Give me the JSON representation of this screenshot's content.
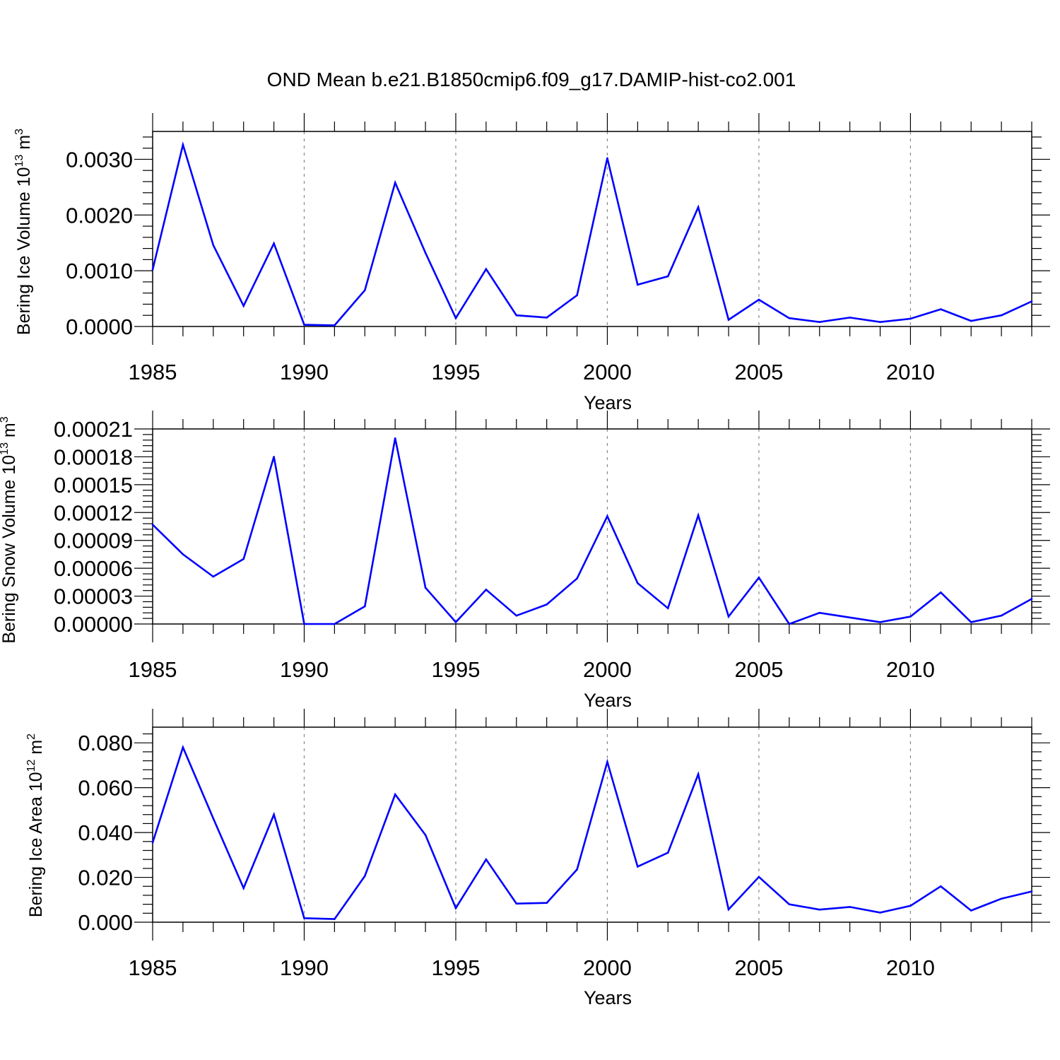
{
  "title": "OND Mean b.e21.B1850cmip6.f09_g17.DAMIP-hist-co2.001",
  "colors": {
    "series": "#0000ff",
    "axis": "#000000",
    "grid": "#888888"
  },
  "chart_data": [
    {
      "type": "line",
      "ylabel": {
        "base": "Bering Ice Volume 10",
        "exp": "13",
        "unit": " m",
        "unit_exp": "3"
      },
      "xlabel": "Years",
      "xlim": [
        1985,
        2014
      ],
      "ylim": [
        0,
        0.0035
      ],
      "xticks": [
        "1985",
        "1990",
        "1995",
        "2000",
        "2005",
        "2010"
      ],
      "yticks": [
        "0.0000",
        "0.0010",
        "0.0020",
        "0.0030"
      ],
      "ytick_values": [
        0,
        0.001,
        0.002,
        0.003
      ],
      "x": [
        1985,
        1986,
        1987,
        1988,
        1989,
        1990,
        1991,
        1992,
        1993,
        1994,
        1995,
        1996,
        1997,
        1998,
        1999,
        2000,
        2001,
        2002,
        2003,
        2004,
        2005,
        2006,
        2007,
        2008,
        2009,
        2010,
        2011,
        2012,
        2013,
        2014
      ],
      "values": [
        0.00102,
        0.00326,
        0.00146,
        0.00037,
        0.00149,
        3e-05,
        2e-05,
        0.00065,
        0.00258,
        0.00132,
        0.00015,
        0.00103,
        0.0002,
        0.00016,
        0.00056,
        0.00302,
        0.00075,
        0.0009,
        0.00214,
        0.00012,
        0.00048,
        0.00015,
        8e-05,
        0.00016,
        8e-05,
        0.00014,
        0.00031,
        0.0001,
        0.0002,
        0.00045
      ],
      "grid": "dashed vertical at major x ticks"
    },
    {
      "type": "line",
      "ylabel": {
        "base": "Bering Snow Volume 10",
        "exp": "13",
        "unit": " m",
        "unit_exp": "3"
      },
      "xlabel": "Years",
      "xlim": [
        1985,
        2014
      ],
      "ylim": [
        0,
        0.00021
      ],
      "xticks": [
        "1985",
        "1990",
        "1995",
        "2000",
        "2005",
        "2010"
      ],
      "yticks": [
        "0.00000",
        "0.00003",
        "0.00006",
        "0.00009",
        "0.00012",
        "0.00015",
        "0.00018",
        "0.00021"
      ],
      "ytick_values": [
        0,
        3e-05,
        6e-05,
        9e-05,
        0.00012,
        0.00015,
        0.00018,
        0.00021
      ],
      "x": [
        1985,
        1986,
        1987,
        1988,
        1989,
        1990,
        1991,
        1992,
        1993,
        1994,
        1995,
        1996,
        1997,
        1998,
        1999,
        2000,
        2001,
        2002,
        2003,
        2004,
        2005,
        2006,
        2007,
        2008,
        2009,
        2010,
        2011,
        2012,
        2013,
        2014
      ],
      "values": [
        0.000107,
        7.5e-05,
        5.1e-05,
        7e-05,
        0.00018,
        0,
        0,
        1.9e-05,
        0.0002,
        3.9e-05,
        2e-06,
        3.7e-05,
        9e-06,
        2.1e-05,
        4.9e-05,
        0.000116,
        4.4e-05,
        1.7e-05,
        0.000117,
        8e-06,
        5e-05,
        0,
        1.2e-05,
        7e-06,
        2e-06,
        8e-06,
        3.4e-05,
        2e-06,
        9e-06,
        2.7e-05
      ],
      "grid": "dashed vertical at major x ticks"
    },
    {
      "type": "line",
      "ylabel": {
        "base": "Bering Ice Area 10",
        "exp": "12",
        "unit": " m",
        "unit_exp": "2"
      },
      "xlabel": "Years",
      "xlim": [
        1985,
        2014
      ],
      "ylim": [
        0,
        0.087
      ],
      "xticks": [
        "1985",
        "1990",
        "1995",
        "2000",
        "2005",
        "2010"
      ],
      "yticks": [
        "0.000",
        "0.020",
        "0.040",
        "0.060",
        "0.080"
      ],
      "ytick_values": [
        0,
        0.02,
        0.04,
        0.06,
        0.08
      ],
      "x": [
        1985,
        1986,
        1987,
        1988,
        1989,
        1990,
        1991,
        1992,
        1993,
        1994,
        1995,
        1996,
        1997,
        1998,
        1999,
        2000,
        2001,
        2002,
        2003,
        2004,
        2005,
        2006,
        2007,
        2008,
        2009,
        2010,
        2011,
        2012,
        2013,
        2014
      ],
      "values": [
        0.0355,
        0.078,
        0.0463,
        0.0152,
        0.048,
        0.0018,
        0.0014,
        0.0206,
        0.057,
        0.0389,
        0.0063,
        0.028,
        0.0083,
        0.0086,
        0.0235,
        0.0715,
        0.0248,
        0.031,
        0.066,
        0.0057,
        0.0202,
        0.008,
        0.0056,
        0.0068,
        0.0043,
        0.0073,
        0.016,
        0.0052,
        0.0105,
        0.0137
      ],
      "grid": "dashed vertical at major x ticks"
    }
  ]
}
